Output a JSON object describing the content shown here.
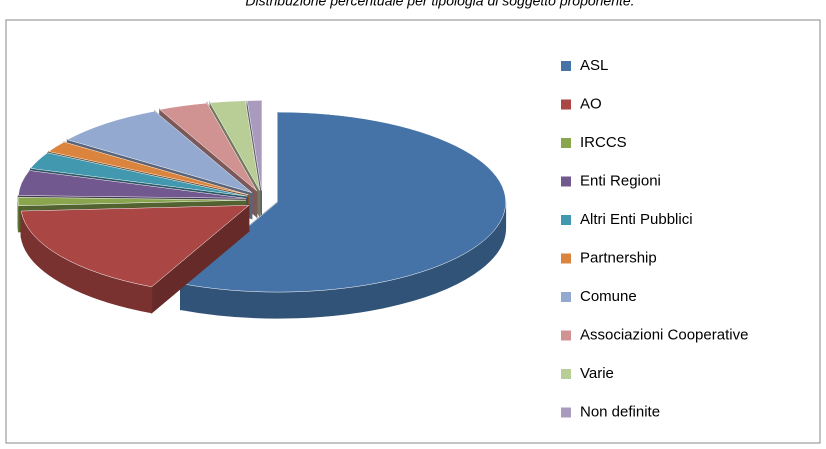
{
  "chart_data": {
    "type": "pie3d",
    "title": "Distribuzione percentuale per tipologia di soggetto proponente.",
    "categories": [
      "ASL",
      "AO",
      "IRCCS",
      "Enti Regioni",
      "Altri Enti Pubblici",
      "Partnership",
      "Comune",
      "Associazioni Cooperative",
      "Varie",
      "Non definite"
    ],
    "values": [
      57,
      17,
      1.5,
      4.5,
      3,
      2,
      8,
      3.5,
      2.5,
      1
    ],
    "colors": [
      "#4573a7",
      "#aa4643",
      "#89a54e",
      "#71588f",
      "#4198af",
      "#db843d",
      "#93a9cf",
      "#d19392",
      "#b9cd96",
      "#a99bbd"
    ],
    "legend": "right"
  }
}
